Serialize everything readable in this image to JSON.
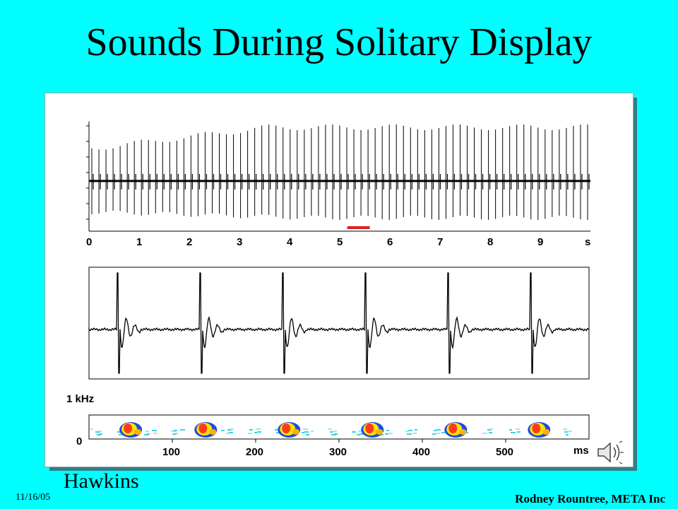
{
  "slide": {
    "title": "Sounds During Solitary Display",
    "author": "Hawkins",
    "date": "11/16/05",
    "credit": "Rodney Rountree, META Inc"
  },
  "colors": {
    "background": "#00ffff",
    "figure_shadow": "#2f7f87",
    "highlight_bar": "#e02020"
  },
  "icons": [
    "speaker-icon"
  ],
  "chart_data": [
    {
      "type": "line",
      "title": "",
      "xlabel": "",
      "ylabel": "",
      "x_unit": "s",
      "x_ticks": [
        "0",
        "1",
        "2",
        "3",
        "4",
        "5",
        "6",
        "7",
        "8",
        "9"
      ],
      "xlim": [
        0,
        10
      ],
      "pulse_count": 71,
      "highlight_segment_s": [
        5.15,
        5.6
      ]
    },
    {
      "type": "line",
      "title": "",
      "xlabel": "",
      "ylabel": "",
      "pulse_count": 6
    },
    {
      "type": "heatmap",
      "title": "",
      "x_unit": "ms",
      "x_ticks": [
        "100",
        "200",
        "300",
        "400",
        "500"
      ],
      "xlim": [
        0,
        600
      ],
      "y_ticks": [
        "0",
        "1 kHz"
      ],
      "pulse_times_ms": [
        45,
        135,
        235,
        335,
        435,
        535
      ]
    }
  ]
}
